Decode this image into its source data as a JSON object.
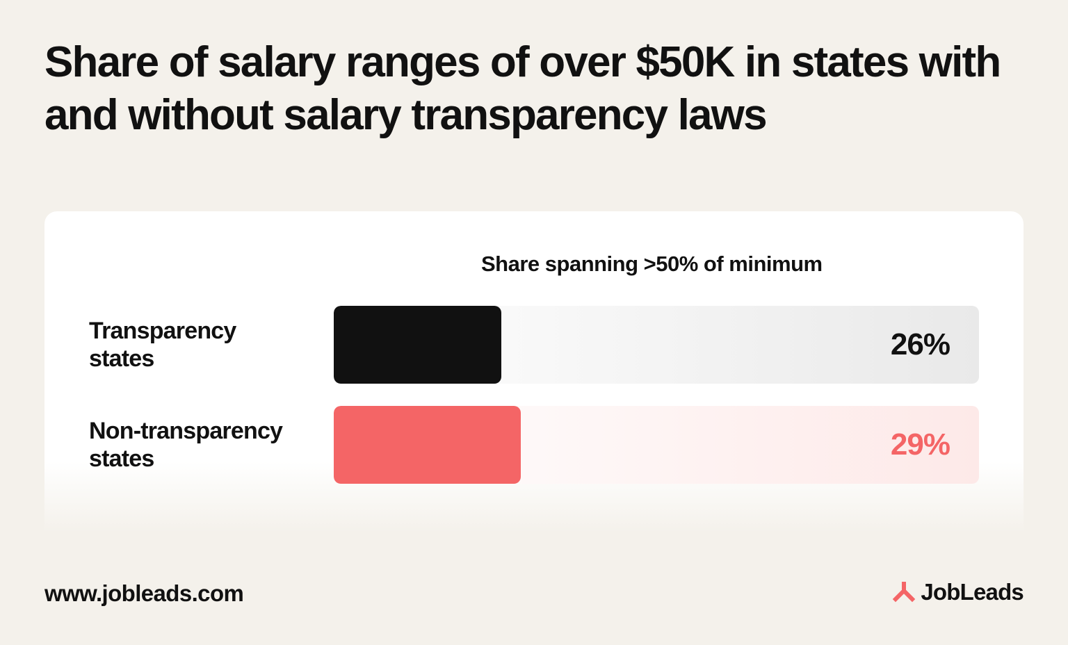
{
  "title": "Share of salary ranges of over $50K in states with and without salary transparency laws",
  "chart_data": {
    "type": "bar",
    "orientation": "horizontal",
    "subtitle": "Share spanning >50% of minimum",
    "categories": [
      "Transparency states",
      "Non-transparency states"
    ],
    "category_lines": [
      [
        "Transparency",
        "states"
      ],
      [
        "Non-transparency",
        "states"
      ]
    ],
    "values": [
      26,
      29
    ],
    "value_labels": [
      "26%",
      "29%"
    ],
    "unit": "%",
    "xlim": [
      0,
      100
    ],
    "colors": [
      "#111111",
      "#f46566"
    ],
    "grid": false,
    "legend": "none"
  },
  "footer": {
    "url": "www.jobleads.com",
    "brand": "JobLeads"
  },
  "colors": {
    "background": "#f4f1eb",
    "panel": "#ffffff",
    "brand_accent": "#f46566",
    "text": "#111111"
  },
  "icons": {
    "brand_logo": "jobleads-logo-icon"
  }
}
